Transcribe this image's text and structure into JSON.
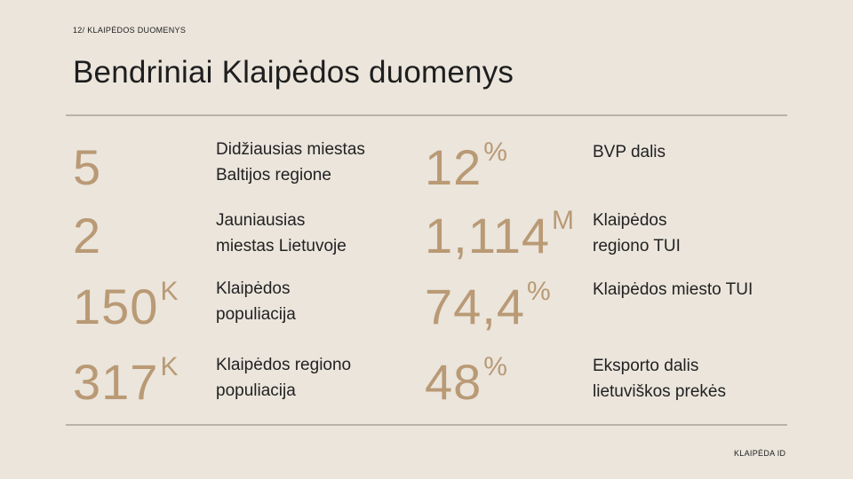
{
  "header": {
    "kicker": "12/ KLAIPĖDOS DUOMENYS",
    "title": "Bendriniai Klaipėdos duomenys"
  },
  "left_stats": [
    {
      "value": "5",
      "suffix": "",
      "label_lines": [
        "Didžiausias miestas",
        "Baltijos regione"
      ]
    },
    {
      "value": "2",
      "suffix": "",
      "label_lines": [
        "Jauniausias",
        "miestas Lietuvoje"
      ]
    },
    {
      "value": "150",
      "suffix": "K",
      "label_lines": [
        "Klaipėdos",
        "populiacija"
      ]
    },
    {
      "value": "317",
      "suffix": "K",
      "label_lines": [
        "Klaipėdos regiono",
        "populiacija"
      ]
    }
  ],
  "right_stats": [
    {
      "value": "12",
      "suffix": "%",
      "label_lines": [
        "BVP dalis"
      ]
    },
    {
      "value": "1,114",
      "suffix": "M",
      "label_lines": [
        "Klaipėdos",
        "regiono TUI"
      ]
    },
    {
      "value": "74,4",
      "suffix": "%",
      "label_lines": [
        "Klaipėdos miesto TUI"
      ]
    },
    {
      "value": "48",
      "suffix": "%",
      "label_lines": [
        "Eksporto dalis",
        "lietuviškos prekės"
      ]
    }
  ],
  "footer": {
    "brand": "KLAIPĖDA ID"
  },
  "colors": {
    "background": "#ebe5dc",
    "accent": "#b99a75",
    "rule": "#b9b2a7"
  }
}
